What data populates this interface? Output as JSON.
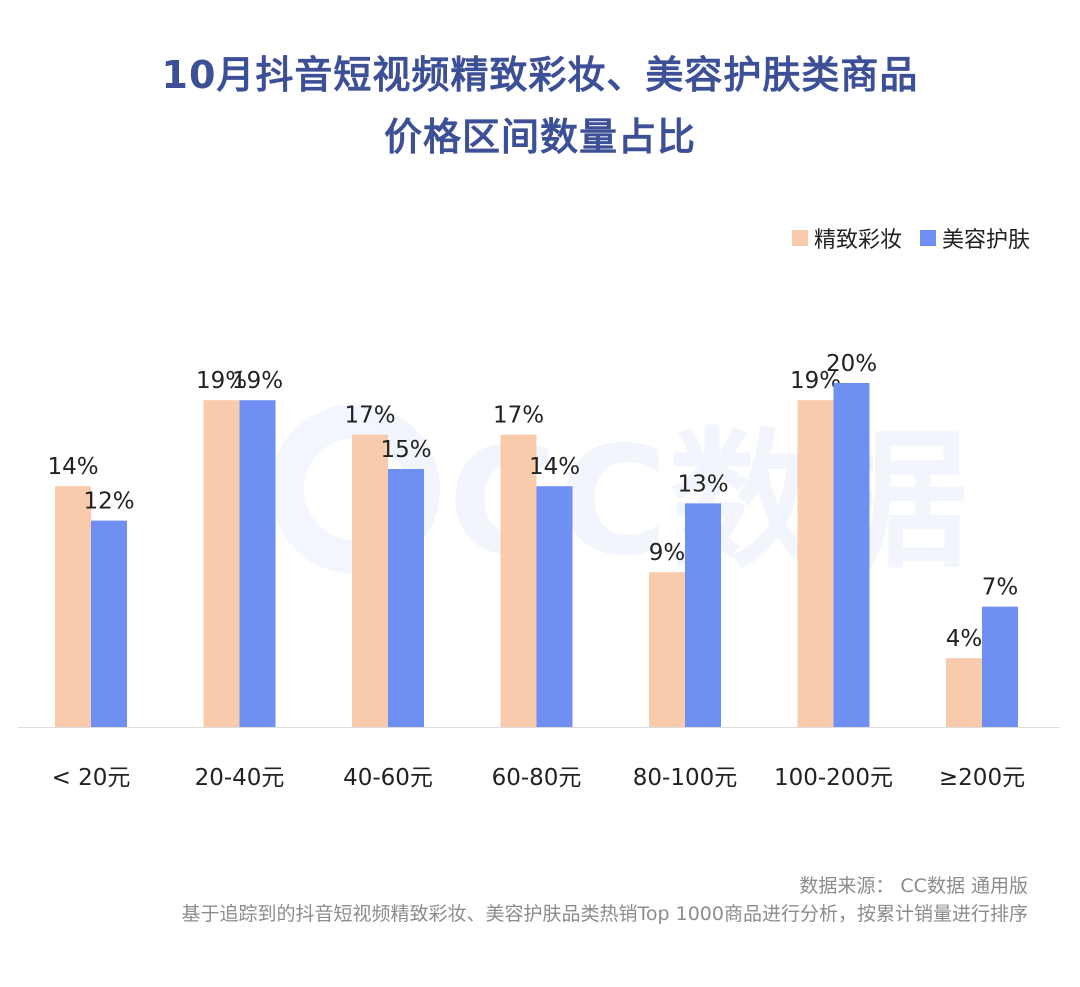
{
  "title": {
    "line1": "10月抖音短视频精致彩妆、美容护肤类商品",
    "line2": "价格区间数量占比"
  },
  "watermark_text": "CC数据",
  "footer": {
    "source": "数据来源： CC数据 通用版",
    "note": "基于追踪到的抖音短视频精致彩妆、美容护肤品类热销Top 1000商品进行分析，按累计销量进行排序"
  },
  "colors": {
    "title": "#3d4f96",
    "series1": "#f7cbab",
    "series2": "#6f8ff2",
    "axis": "#dddddd"
  },
  "chart_data": {
    "type": "bar",
    "categories": [
      "< 20元",
      "20-40元",
      "40-60元",
      "60-80元",
      "80-100元",
      "100-200元",
      "≥200元"
    ],
    "series": [
      {
        "name": "精致彩妆",
        "values": [
          14,
          19,
          17,
          17,
          9,
          19,
          4
        ],
        "labels": [
          "14%",
          "19%",
          "17%",
          "17%",
          "9%",
          "19%",
          "4%"
        ]
      },
      {
        "name": "美容护肤",
        "values": [
          12,
          19,
          15,
          14,
          13,
          20,
          7
        ],
        "labels": [
          "12%",
          "19%",
          "15%",
          "14%",
          "13%",
          "20%",
          "7%"
        ]
      }
    ],
    "title": "10月抖音短视频精致彩妆、美容护肤类商品 价格区间数量占比",
    "xlabel": "",
    "ylabel": "",
    "ylim": [
      0,
      20
    ],
    "grid": false,
    "legend": "top-right"
  }
}
